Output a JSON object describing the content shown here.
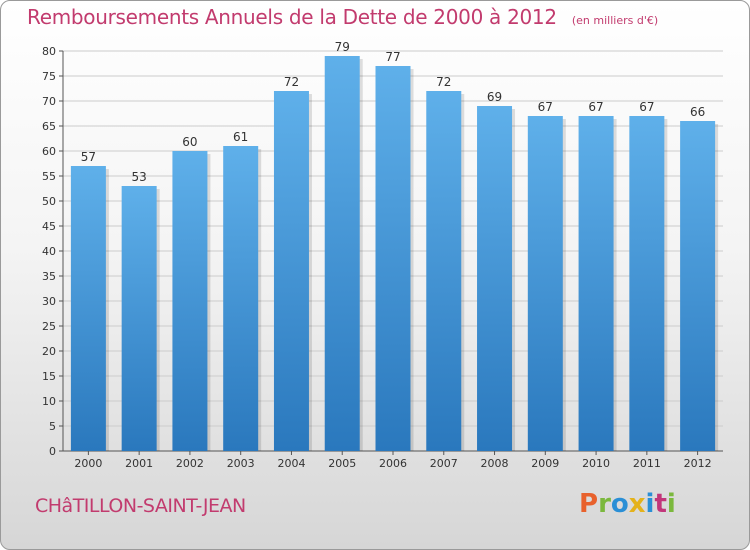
{
  "header": {
    "title": "Remboursements Annuels de la Dette de 2000 à 2012",
    "unit": "(en milliers d'€)"
  },
  "footer": {
    "commune": "CHâTILLON-SAINT-JEAN",
    "logo_text": "Proxiti",
    "logo_colors": [
      "#e8612c",
      "#7bb83d",
      "#2a8fd6",
      "#e4b21b",
      "#2a8fd6",
      "#c2367a",
      "#7bb83d"
    ]
  },
  "colors": {
    "title": "#c23b6e",
    "bar_top": "#5fb0ea",
    "bar_bottom": "#2a78bd",
    "grid": "#cccccc"
  },
  "chart_data": {
    "type": "bar",
    "title": "Remboursements Annuels de la Dette de 2000 à 2012",
    "xlabel": "",
    "ylabel": "",
    "categories": [
      "2000",
      "2001",
      "2002",
      "2003",
      "2004",
      "2005",
      "2006",
      "2007",
      "2008",
      "2009",
      "2010",
      "2011",
      "2012"
    ],
    "values": [
      57,
      53,
      60,
      61,
      72,
      79,
      77,
      72,
      69,
      67,
      67,
      67,
      66
    ],
    "ylim": [
      0,
      80
    ],
    "yticks": [
      0,
      5,
      10,
      15,
      20,
      25,
      30,
      35,
      40,
      45,
      50,
      55,
      60,
      65,
      70,
      75,
      80
    ],
    "grid": true,
    "data_labels": true
  }
}
